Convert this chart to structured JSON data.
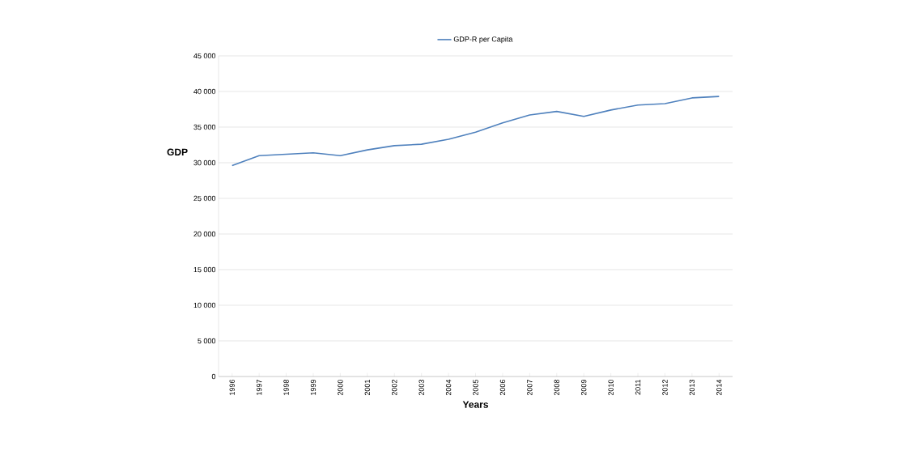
{
  "chart_data": {
    "type": "line",
    "xlabel": "Years",
    "ylabel": "GDP",
    "categories": [
      "1996",
      "1997",
      "1998",
      "1999",
      "2000",
      "2001",
      "2002",
      "2003",
      "2004",
      "2005",
      "2006",
      "2007",
      "2008",
      "2009",
      "2010",
      "2011",
      "2012",
      "2013",
      "2014"
    ],
    "series": [
      {
        "name": "GDP-R per Capita",
        "color": "#4f81bd",
        "values": [
          29600,
          31000,
          31200,
          31400,
          31000,
          31800,
          32400,
          32600,
          33300,
          34300,
          35600,
          36700,
          37200,
          36500,
          37400,
          38100,
          38300,
          39100,
          39300
        ]
      }
    ],
    "ylim": [
      0,
      45000
    ],
    "yticks": [
      0,
      {
        "value": 5000,
        "label": "5 000"
      },
      {
        "value": 10000,
        "label": "10 000"
      },
      {
        "value": 15000,
        "label": "15 000"
      },
      {
        "value": 20000,
        "label": "20 000"
      },
      {
        "value": 25000,
        "label": "25 000"
      },
      {
        "value": 30000,
        "label": "30 000"
      },
      {
        "value": 35000,
        "label": "35 000"
      },
      {
        "value": 40000,
        "label": "40 000"
      },
      {
        "value": 45000,
        "label": "45 000"
      }
    ],
    "grid": "y",
    "legend": "top",
    "marker": "none",
    "line_style": "solid"
  }
}
